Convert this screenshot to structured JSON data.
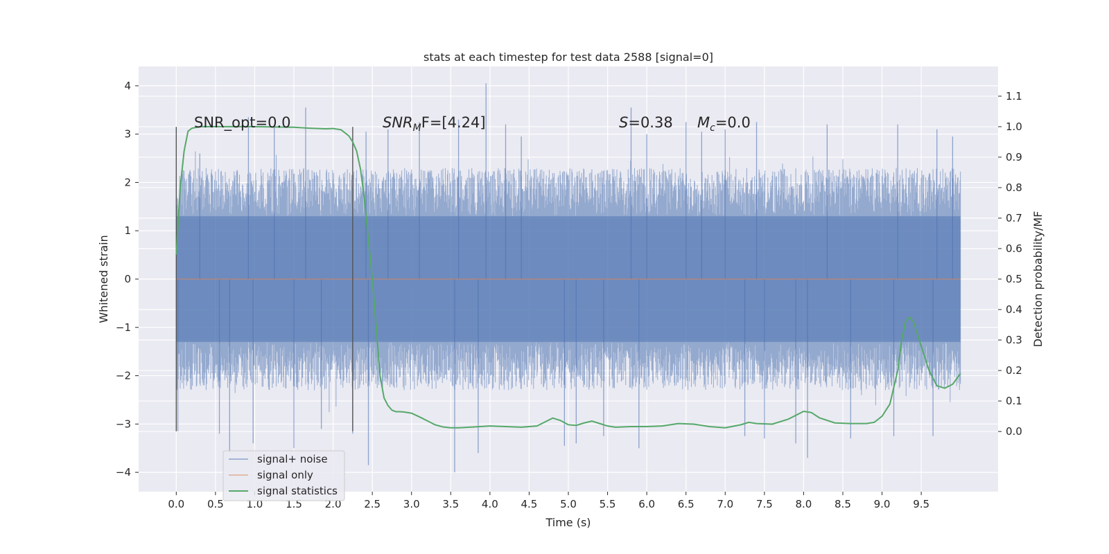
{
  "chart_data": {
    "type": "line",
    "title": "stats at each timestep for test data 2588 [signal=0]",
    "xlabel": "Time (s)",
    "ylabel": "Whitened strain",
    "ylabel_right": "Detection probability/MF",
    "xlim": [
      -0.48,
      10.48
    ],
    "ylim": [
      -4.4,
      4.4
    ],
    "ylim_right": [
      -0.1975,
      1.1975
    ],
    "x_ticks": [
      "0.0",
      "0.5",
      "1.0",
      "1.5",
      "2.0",
      "2.5",
      "3.0",
      "3.5",
      "4.0",
      "4.5",
      "5.0",
      "5.5",
      "6.0",
      "6.5",
      "7.0",
      "7.5",
      "8.0",
      "8.5",
      "9.0",
      "9.5"
    ],
    "y_ticks": [
      "4",
      "3",
      "2",
      "1",
      "0",
      "−1",
      "−2",
      "−3",
      "−4"
    ],
    "y_right_ticks": [
      "1.1",
      "1.0",
      "0.9",
      "0.8",
      "0.7",
      "0.6",
      "0.5",
      "0.4",
      "0.3",
      "0.2",
      "0.1",
      "0.0"
    ],
    "grid": true,
    "legend_position": "bottom-left",
    "annotations": {
      "snr_opt": "SNR_opt=0.0",
      "snr_mf_label": "SNR",
      "snr_mf_sub": "M",
      "snr_mf_rest": "F=[4.24]",
      "s_label": "S",
      "s_value": "=0.38",
      "mc_label": "M",
      "mc_sub": "c",
      "mc_value": "=0.0"
    },
    "window_markers": {
      "x": [
        0.0,
        2.25
      ],
      "y_range": [
        -3.15,
        3.15
      ]
    },
    "series": [
      {
        "name": "signal+ noise",
        "color": "#4c72b0",
        "axis": "left",
        "x_range": [
          0.0,
          10.0
        ],
        "envelope": {
          "core_abs": 1.3,
          "typical_peak_abs": 2.3,
          "max": 4.05,
          "min": -4.0
        },
        "spikes": [
          {
            "x": 0.02,
            "y": -3.15
          },
          {
            "x": 0.3,
            "y": 2.6
          },
          {
            "x": 0.55,
            "y": -3.2
          },
          {
            "x": 0.68,
            "y": -3.6
          },
          {
            "x": 0.92,
            "y": 3.35
          },
          {
            "x": 0.98,
            "y": -3.4
          },
          {
            "x": 1.25,
            "y": 3.2
          },
          {
            "x": 1.5,
            "y": -3.5
          },
          {
            "x": 1.65,
            "y": 3.55
          },
          {
            "x": 1.85,
            "y": -3.1
          },
          {
            "x": 2.25,
            "y": -3.2
          },
          {
            "x": 2.42,
            "y": 3.05
          },
          {
            "x": 2.45,
            "y": -3.85
          },
          {
            "x": 2.7,
            "y": 3.1
          },
          {
            "x": 3.1,
            "y": 3.25
          },
          {
            "x": 3.55,
            "y": -4.0
          },
          {
            "x": 3.6,
            "y": 3.3
          },
          {
            "x": 3.85,
            "y": -3.6
          },
          {
            "x": 3.95,
            "y": 4.05
          },
          {
            "x": 4.2,
            "y": 3.2
          },
          {
            "x": 4.4,
            "y": 2.95
          },
          {
            "x": 4.95,
            "y": -3.45
          },
          {
            "x": 5.1,
            "y": -3.4
          },
          {
            "x": 5.45,
            "y": -3.25
          },
          {
            "x": 5.8,
            "y": 3.55
          },
          {
            "x": 5.9,
            "y": -3.5
          },
          {
            "x": 6.0,
            "y": 3.0
          },
          {
            "x": 6.5,
            "y": 3.25
          },
          {
            "x": 6.7,
            "y": 3.05
          },
          {
            "x": 7.0,
            "y": 3.1
          },
          {
            "x": 7.25,
            "y": -3.25
          },
          {
            "x": 7.4,
            "y": 3.25
          },
          {
            "x": 7.5,
            "y": -3.3
          },
          {
            "x": 7.9,
            "y": -3.4
          },
          {
            "x": 8.05,
            "y": -3.7
          },
          {
            "x": 8.3,
            "y": 3.2
          },
          {
            "x": 8.6,
            "y": -3.3
          },
          {
            "x": 9.15,
            "y": -3.25
          },
          {
            "x": 9.2,
            "y": 3.2
          },
          {
            "x": 9.65,
            "y": -3.25
          },
          {
            "x": 9.7,
            "y": 3.1
          },
          {
            "x": 9.9,
            "y": 2.95
          }
        ]
      },
      {
        "name": "signal only",
        "color": "#dd8452",
        "axis": "left",
        "x": [
          0.0,
          10.0
        ],
        "y": [
          0.0,
          0.0
        ]
      },
      {
        "name": "signal statistics",
        "color": "#55a868",
        "axis": "right",
        "x": [
          0.0,
          0.05,
          0.1,
          0.15,
          0.2,
          0.3,
          0.5,
          1.0,
          1.5,
          1.7,
          1.9,
          2.0,
          2.1,
          2.2,
          2.25,
          2.3,
          2.35,
          2.4,
          2.5,
          2.6,
          2.65,
          2.7,
          2.75,
          2.8,
          2.85,
          2.9,
          3.0,
          3.1,
          3.2,
          3.3,
          3.4,
          3.5,
          3.6,
          3.8,
          4.0,
          4.2,
          4.4,
          4.6,
          4.8,
          4.9,
          5.0,
          5.1,
          5.2,
          5.3,
          5.4,
          5.5,
          5.6,
          5.8,
          6.0,
          6.2,
          6.4,
          6.6,
          6.8,
          7.0,
          7.2,
          7.3,
          7.4,
          7.6,
          7.8,
          8.0,
          8.1,
          8.2,
          8.4,
          8.6,
          8.8,
          8.9,
          9.0,
          9.1,
          9.2,
          9.25,
          9.3,
          9.35,
          9.4,
          9.5,
          9.6,
          9.7,
          9.8,
          9.9,
          10.0
        ],
        "y": [
          0.58,
          0.8,
          0.92,
          0.985,
          0.995,
          1.0,
          1.0,
          1.0,
          0.998,
          0.995,
          0.993,
          0.994,
          0.99,
          0.97,
          0.95,
          0.92,
          0.86,
          0.76,
          0.5,
          0.18,
          0.11,
          0.085,
          0.07,
          0.065,
          0.065,
          0.064,
          0.06,
          0.048,
          0.035,
          0.022,
          0.015,
          0.012,
          0.012,
          0.015,
          0.018,
          0.016,
          0.014,
          0.018,
          0.044,
          0.036,
          0.022,
          0.02,
          0.028,
          0.034,
          0.026,
          0.018,
          0.014,
          0.016,
          0.016,
          0.018,
          0.026,
          0.024,
          0.016,
          0.012,
          0.022,
          0.03,
          0.026,
          0.024,
          0.04,
          0.066,
          0.062,
          0.045,
          0.028,
          0.026,
          0.026,
          0.03,
          0.05,
          0.09,
          0.2,
          0.3,
          0.36,
          0.375,
          0.36,
          0.28,
          0.2,
          0.15,
          0.142,
          0.155,
          0.19
        ]
      }
    ]
  }
}
